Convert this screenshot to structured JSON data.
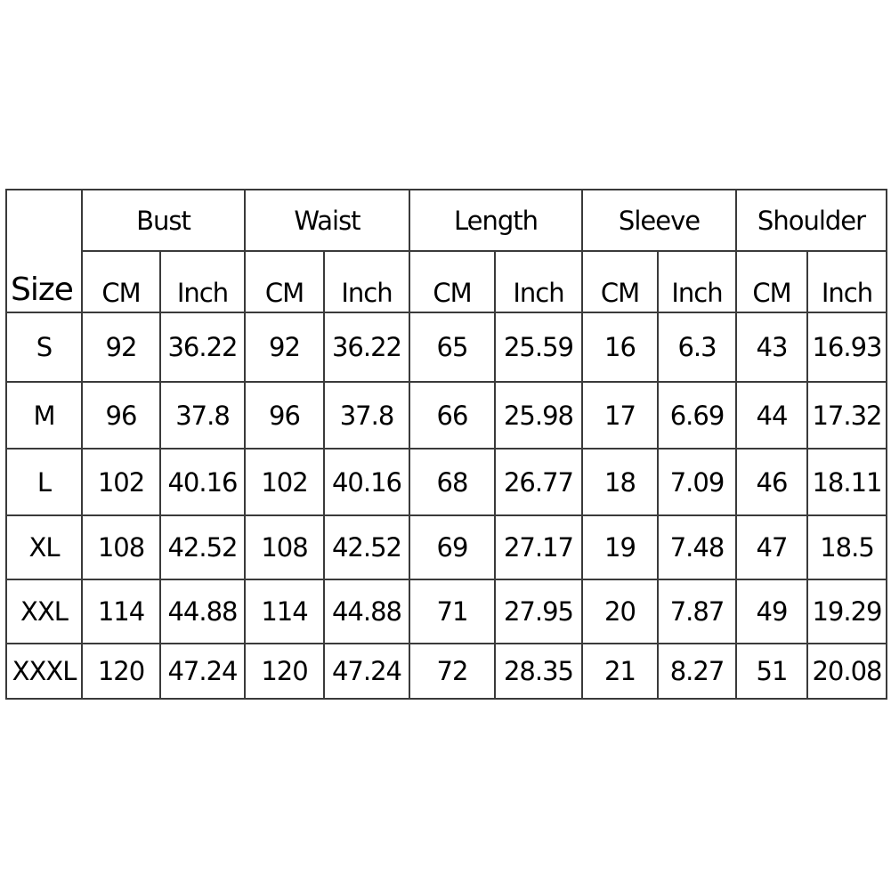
{
  "size_chart": {
    "size_header": "Size",
    "groups": [
      "Bust",
      "Waist",
      "Length",
      "Sleeve",
      "Shoulder"
    ],
    "units": [
      "CM",
      "Inch"
    ],
    "rows": [
      {
        "size": "S",
        "values": [
          "92",
          "36.22",
          "92",
          "36.22",
          "65",
          "25.59",
          "16",
          "6.3",
          "43",
          "16.93"
        ]
      },
      {
        "size": "M",
        "values": [
          "96",
          "37.8",
          "96",
          "37.8",
          "66",
          "25.98",
          "17",
          "6.69",
          "44",
          "17.32"
        ]
      },
      {
        "size": "L",
        "values": [
          "102",
          "40.16",
          "102",
          "40.16",
          "68",
          "26.77",
          "18",
          "7.09",
          "46",
          "18.11"
        ]
      },
      {
        "size": "XL",
        "values": [
          "108",
          "42.52",
          "108",
          "42.52",
          "69",
          "27.17",
          "19",
          "7.48",
          "47",
          "18.5"
        ]
      },
      {
        "size": "XXL",
        "values": [
          "114",
          "44.88",
          "114",
          "44.88",
          "71",
          "27.95",
          "20",
          "7.87",
          "49",
          "19.29"
        ]
      },
      {
        "size": "XXXL",
        "values": [
          "120",
          "47.24",
          "120",
          "47.24",
          "72",
          "28.35",
          "21",
          "8.27",
          "51",
          "20.08"
        ]
      }
    ]
  }
}
